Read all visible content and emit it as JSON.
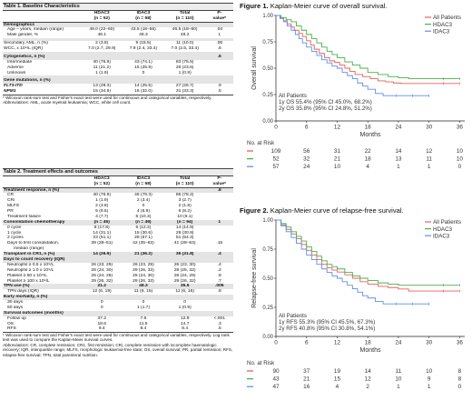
{
  "table1": {
    "title": "Table 1. Baseline Characteristics",
    "headers": {
      "col0": "",
      "hdac3": "HDAC3",
      "hdac3_n": "(n = 52)",
      "idac3": "IDAC3",
      "idac3_n": "(n = 58)",
      "total": "Total",
      "total_n": "(n = 110)",
      "p1": "P-",
      "p2": "value*"
    },
    "rows": [
      {
        "type": "sec",
        "label": "Demographics",
        "h": "",
        "i": "",
        "t": "",
        "p": ""
      },
      {
        "type": "sub",
        "label": "Age – years, median (range)",
        "h": "48.0 (22–60)",
        "i": "43.5 (18–56)",
        "t": "46.5 (18–60)",
        "p": ".04"
      },
      {
        "type": "sub",
        "label": "Male gender, %",
        "h": "48.1",
        "i": "48.3",
        "t": "48.2",
        "p": "1"
      },
      {
        "type": "spacer",
        "label": "",
        "h": "",
        "i": "",
        "t": "",
        "p": ""
      },
      {
        "type": "plain",
        "label": "Secondary AML, n (%)",
        "h": "2 (3.8)",
        "i": "9 (15.5)",
        "t": "11 (10.0)",
        "p": ".06"
      },
      {
        "type": "plain",
        "label": "WCC, x 10⁹/L (IQR)",
        "h": "7.0 (2.7, 29.9)",
        "i": "7.9 (2.4, 33.4)",
        "t": "7.0 (2.5, 33.4)",
        "p": ".6"
      },
      {
        "type": "spacer",
        "label": "",
        "h": "",
        "i": "",
        "t": "",
        "p": ""
      },
      {
        "type": "sec",
        "label": "Cytogenetics, n (%)",
        "h": "",
        "i": "",
        "t": "",
        "p": ".6"
      },
      {
        "type": "sub",
        "label": "Intermediate",
        "h": "40 (76.9)",
        "i": "43 (74.1)",
        "t": "83 (75.5)",
        "p": ""
      },
      {
        "type": "sub",
        "label": "Adverse",
        "h": "11 (21.2)",
        "i": "15 (25.9)",
        "t": "26 (23.6)",
        "p": ""
      },
      {
        "type": "sub",
        "label": "Unknown",
        "h": "1 (1.9)",
        "i": "0",
        "t": "1 (0.9)",
        "p": ""
      },
      {
        "type": "spacer",
        "label": "",
        "h": "",
        "i": "",
        "t": "",
        "p": ""
      },
      {
        "type": "sec",
        "label": "Gene mutations, n (%)",
        "h": "",
        "i": "",
        "t": "",
        "p": ""
      },
      {
        "type": "it",
        "label": "FLT3-ITD",
        "h": "13 (28.3)",
        "i": "14 (25.5)",
        "t": "27 (26.7)",
        "p": ".9"
      },
      {
        "type": "it last",
        "label": "NPM1",
        "h": "15 (34.9)",
        "i": "16 (32.0)",
        "t": "31 (33.3)",
        "p": ".5"
      }
    ],
    "footnote1": "* Wilcoxon rank-sum test and Fisher's exact test were used for continuous and categorical variables, respectively.",
    "footnote2_label": "Abbreviations:",
    "footnote2": " AML, acute myeloid leukaemia; WCC, white cell count."
  },
  "table2": {
    "title": "Table 2. Treatment effects and outcomes",
    "headers": {
      "col0": "",
      "hdac3": "HDAC3",
      "hdac3_n": "(n = 52)",
      "idac3": "IDAC3",
      "idac3_n": "(n = 58)",
      "total": "Total",
      "total_n": "(n = 110)",
      "p1": "P-",
      "p2": "value*"
    },
    "rows": [
      {
        "type": "sec",
        "label": "Treatment response, n (%)",
        "h": "",
        "i": "",
        "t": "",
        "p": ".6"
      },
      {
        "type": "sub",
        "label": "CR",
        "h": "40 (76.9)",
        "i": "46 (79.3)",
        "t": "86 (78.2)",
        "p": ""
      },
      {
        "type": "sub",
        "label": "CRi",
        "h": "1 (1.9)",
        "i": "2 (3.4)",
        "t": "3 (2.7)",
        "p": ""
      },
      {
        "type": "sub",
        "label": "MLFS",
        "h": "2 (3.8)",
        "i": "0",
        "t": "2 (1.8)",
        "p": ""
      },
      {
        "type": "sub",
        "label": "PR",
        "h": "5 (9.6)",
        "i": "4 (6.9)",
        "t": "9 (8.2)",
        "p": ""
      },
      {
        "type": "sub",
        "label": "Treatment failure",
        "h": "4 (7.7)",
        "i": "6 (10.3)",
        "t": "10 (9.1)",
        "p": ""
      },
      {
        "type": "sec",
        "label": "Consolidation chemotherapy",
        "h": "(n = 45)",
        "i": "(n = 49)",
        "t": "(n = 94)",
        "p": "1"
      },
      {
        "type": "sub",
        "label": "0 cycle",
        "h": "8 (17.8)",
        "i": "6 (12.2)",
        "t": "14 (14.9)",
        "p": ""
      },
      {
        "type": "sub",
        "label": "1 cycle",
        "h": "14 (31.1)",
        "i": "15 (30.6)",
        "t": "29 (30.9)",
        "p": ""
      },
      {
        "type": "sub",
        "label": "2 cycles",
        "h": "23 (51.1)",
        "i": "28 (57.1)",
        "t": "51 (54.3)",
        "p": ""
      },
      {
        "type": "sub",
        "label": "Days to first consolidation,",
        "h": "39 (28–51)",
        "i": "42 (35–63)",
        "t": "41 (28–63)",
        "p": ".15"
      },
      {
        "type": "sub2",
        "label": "median (range)",
        "h": "",
        "i": "",
        "t": "",
        "p": ""
      },
      {
        "type": "sec",
        "label": "Transplant in CR1, n (%)",
        "h": "14 (26.9)",
        "i": "21 (36.2)",
        "t": "35 (31.8)",
        "p": ".4"
      },
      {
        "type": "sec",
        "label": "Days to count recovery (IQR)",
        "h": "",
        "i": "",
        "t": "",
        "p": ""
      },
      {
        "type": "sub",
        "label": "Neutrophil ≥ 0.5 x 10⁹/L",
        "h": "26 (23, 29)",
        "i": "26 (23, 29)",
        "t": "26 (23, 30)",
        "p": ".4"
      },
      {
        "type": "sub",
        "label": "Neutrophil ≥ 1.0 x 10⁹/L",
        "h": "28 (24, 30)",
        "i": "29 (26, 33)",
        "t": "28 (25, 32)",
        "p": ".2"
      },
      {
        "type": "sub",
        "label": "Platelet ≥ 50 x 10⁹/L",
        "h": "26 (24, 28)",
        "i": "26 (24, 30)",
        "t": "26 (24, 29)",
        "p": ".8"
      },
      {
        "type": "sub",
        "label": "Platelet ≥ 100 x 10⁹/L",
        "h": "29 (26, 32)",
        "i": "29 (26, 33)",
        "t": "29 (26, 32)",
        "p": ".7"
      },
      {
        "type": "sec",
        "label": "TPN use (%)",
        "h": "21.2",
        "i": "48.3",
        "t": "35.5",
        "p": ".005"
      },
      {
        "type": "sub",
        "label": "TPN days (IQR)",
        "h": "12 (6, 19)",
        "i": "11 (6, 15)",
        "t": "11 (6, 16)",
        "p": ".8"
      },
      {
        "type": "sec",
        "label": "Early mortality, n (%)",
        "h": "",
        "i": "",
        "t": "",
        "p": ""
      },
      {
        "type": "sub",
        "label": "30 days",
        "h": "0",
        "i": "0",
        "t": "0",
        "p": ""
      },
      {
        "type": "sub",
        "label": "60 days",
        "h": "0",
        "i": "1 (1.7)",
        "t": "1 (0.9)",
        "p": ""
      },
      {
        "type": "sec",
        "label": "Survival outcomes (months)",
        "h": "",
        "i": "",
        "t": "",
        "p": ""
      },
      {
        "type": "sub",
        "label": "Follow up",
        "h": "37.2",
        "i": "7.6",
        "t": "12.9",
        "p": "<.001"
      },
      {
        "type": "sub",
        "label": "OS",
        "h": "18.6",
        "i": "11.5",
        "t": "14.7",
        "p": ".3"
      },
      {
        "type": "sub last",
        "label": "RFS",
        "h": "9.4",
        "i": "8.4",
        "t": "8.4",
        "p": ".5"
      }
    ],
    "footnote1": "* Wilcoxon rank-sum test and Fisher's exact test were used for continuous and categorical variables, respectively. Log-rank test was used to compare the Kaplan-Meier survival curves.",
    "footnote2_label": "Abbreviations:",
    "footnote2": " CR, complete remission; CR1, first remission; CRi, complete remission with incomplete haematologic recovery; IQR, interquartile range; MLFS, morphologic leukaemia-free state; OS, overall survival; PR, partial remission; RFS, relapse-free survival; TPN, total parenteral nutrition."
  },
  "figure1": {
    "title_bold": "Figure 1.",
    "title_rest": " Kaplan-Meier curve of overall survival.",
    "annotation_line1": "All Patients",
    "annotation_line2": "1y OS 55.4% (95% CI 45.0%, 68.2%)",
    "annotation_line3": "2y OS 35.8% (95% CI 24.8%, 51.2%)",
    "risk_title": "No. at Risk",
    "risk_rows": [
      {
        "color": "#e8605a",
        "values": [
          "109",
          "56",
          "31",
          "22",
          "14",
          "12",
          "10"
        ]
      },
      {
        "color": "#4cae4c",
        "values": [
          "52",
          "32",
          "21",
          "18",
          "13",
          "11",
          "10"
        ]
      },
      {
        "color": "#5b8ff0",
        "values": [
          "57",
          "24",
          "10",
          "4",
          "1",
          "1",
          "0"
        ]
      }
    ],
    "chart_data": {
      "type": "line",
      "ylabel": "Overall survival",
      "xlabel": "Months",
      "xlim": [
        0,
        37
      ],
      "ylim": [
        0,
        1
      ],
      "x_ticks": [
        "0",
        "6",
        "12",
        "18",
        "24",
        "30",
        "36"
      ],
      "y_ticks": [
        "0.00",
        "0.25",
        "0.50",
        "0.75",
        "1.00"
      ],
      "legend_position": "top-right",
      "series": [
        {
          "name": "All Patients",
          "color": "#e8605a",
          "x": [
            0,
            0.8,
            1.5,
            2.2,
            3,
            3.6,
            4.5,
            5.2,
            6,
            6.8,
            7.5,
            8.5,
            9.5,
            10.5,
            11.5,
            12.5,
            13.5,
            14.5,
            15.5,
            17,
            18.5,
            20,
            21.5,
            23,
            24.5,
            26,
            28,
            30,
            32,
            34,
            36
          ],
          "y": [
            1,
            0.98,
            0.95,
            0.92,
            0.89,
            0.86,
            0.83,
            0.8,
            0.76,
            0.72,
            0.68,
            0.64,
            0.6,
            0.57,
            0.555,
            0.53,
            0.5,
            0.47,
            0.44,
            0.42,
            0.4,
            0.38,
            0.37,
            0.36,
            0.355,
            0.355,
            0.355,
            0.355,
            0.355,
            0.355,
            0.355
          ]
        },
        {
          "name": "HDAC3",
          "color": "#4cae4c",
          "x": [
            0,
            1,
            2,
            3,
            4,
            5,
            6,
            7,
            8,
            9,
            10,
            11,
            12,
            13.5,
            15,
            16.5,
            18,
            20,
            22,
            24,
            26,
            28,
            30,
            32,
            34,
            36
          ],
          "y": [
            1,
            0.98,
            0.96,
            0.94,
            0.9,
            0.86,
            0.82,
            0.78,
            0.74,
            0.7,
            0.66,
            0.63,
            0.6,
            0.56,
            0.53,
            0.5,
            0.46,
            0.44,
            0.42,
            0.41,
            0.4,
            0.4,
            0.4,
            0.4,
            0.4,
            0.4
          ]
        },
        {
          "name": "IDAC3",
          "color": "#5b8ff0",
          "x": [
            0,
            0.8,
            1.5,
            2.2,
            3,
            3.8,
            4.5,
            5.2,
            6,
            7,
            8,
            9,
            10,
            11,
            12,
            13,
            14,
            15,
            16,
            17,
            18,
            19.5,
            21,
            24,
            27,
            30
          ],
          "y": [
            1,
            0.97,
            0.94,
            0.9,
            0.86,
            0.82,
            0.78,
            0.74,
            0.7,
            0.66,
            0.62,
            0.58,
            0.55,
            0.52,
            0.5,
            0.46,
            0.43,
            0.4,
            0.36,
            0.33,
            0.3,
            0.26,
            0.24,
            0.24,
            0.24,
            0.24
          ]
        }
      ]
    }
  },
  "figure2": {
    "title_bold": "Figure 2.",
    "title_rest": " Kaplan-Meier curve of relapse-free survival.",
    "annotation_line1": "All Patients",
    "annotation_line2": "1y RFS 55.3% (95% CI 45.5%, 67.3%)",
    "annotation_line3": "2y RFS 40.8% (95% CI 30.8%, 54.1%)",
    "risk_title": "No. at Risk",
    "risk_rows": [
      {
        "color": "#e8605a",
        "values": [
          "90",
          "37",
          "19",
          "14",
          "11",
          "10",
          "8"
        ]
      },
      {
        "color": "#4cae4c",
        "values": [
          "43",
          "21",
          "15",
          "12",
          "10",
          "9",
          "8"
        ]
      },
      {
        "color": "#5b8ff0",
        "values": [
          "47",
          "16",
          "4",
          "2",
          "1",
          "1",
          "0"
        ]
      }
    ],
    "chart_data": {
      "type": "line",
      "ylabel": "Relapse-free survival",
      "xlabel": "Months",
      "xlim": [
        0,
        37
      ],
      "ylim": [
        0,
        1
      ],
      "x_ticks": [
        "0",
        "6",
        "12",
        "18",
        "24",
        "30",
        "36"
      ],
      "y_ticks": [
        "0.00",
        "0.25",
        "0.50",
        "0.75",
        "1.00"
      ],
      "legend_position": "top-right",
      "series": [
        {
          "name": "All Patients",
          "color": "#e8605a",
          "x": [
            0,
            1,
            2,
            3,
            4,
            5,
            6,
            7,
            8,
            9,
            10,
            11,
            12,
            13.5,
            15,
            16.5,
            18,
            20,
            22,
            24,
            26,
            28,
            30,
            32,
            34,
            36
          ],
          "y": [
            1,
            0.96,
            0.92,
            0.88,
            0.84,
            0.79,
            0.74,
            0.7,
            0.66,
            0.62,
            0.59,
            0.57,
            0.553,
            0.53,
            0.5,
            0.47,
            0.45,
            0.43,
            0.42,
            0.408,
            0.39,
            0.39,
            0.39,
            0.39,
            0.39,
            0.39
          ]
        },
        {
          "name": "HDAC3",
          "color": "#4cae4c",
          "x": [
            0,
            1,
            2,
            3,
            4,
            5,
            6,
            7,
            8,
            9,
            10,
            11,
            12,
            13.5,
            15,
            16.5,
            18,
            20,
            22,
            24,
            26,
            28,
            30,
            32,
            34,
            36
          ],
          "y": [
            1,
            0.97,
            0.94,
            0.9,
            0.86,
            0.82,
            0.77,
            0.73,
            0.69,
            0.65,
            0.62,
            0.6,
            0.58,
            0.55,
            0.52,
            0.5,
            0.48,
            0.46,
            0.45,
            0.44,
            0.44,
            0.44,
            0.44,
            0.44,
            0.44,
            0.44
          ]
        },
        {
          "name": "IDAC3",
          "color": "#5b8ff0",
          "x": [
            0,
            1,
            2,
            3,
            4,
            5,
            6,
            7,
            8,
            9,
            10,
            11,
            12,
            13,
            14,
            15,
            16,
            17,
            18,
            19.5,
            21,
            24,
            27,
            30
          ],
          "y": [
            1,
            0.95,
            0.9,
            0.85,
            0.8,
            0.75,
            0.7,
            0.66,
            0.62,
            0.58,
            0.55,
            0.52,
            0.5,
            0.47,
            0.44,
            0.41,
            0.38,
            0.35,
            0.33,
            0.3,
            0.28,
            0.28,
            0.28,
            0.28
          ]
        }
      ]
    }
  }
}
